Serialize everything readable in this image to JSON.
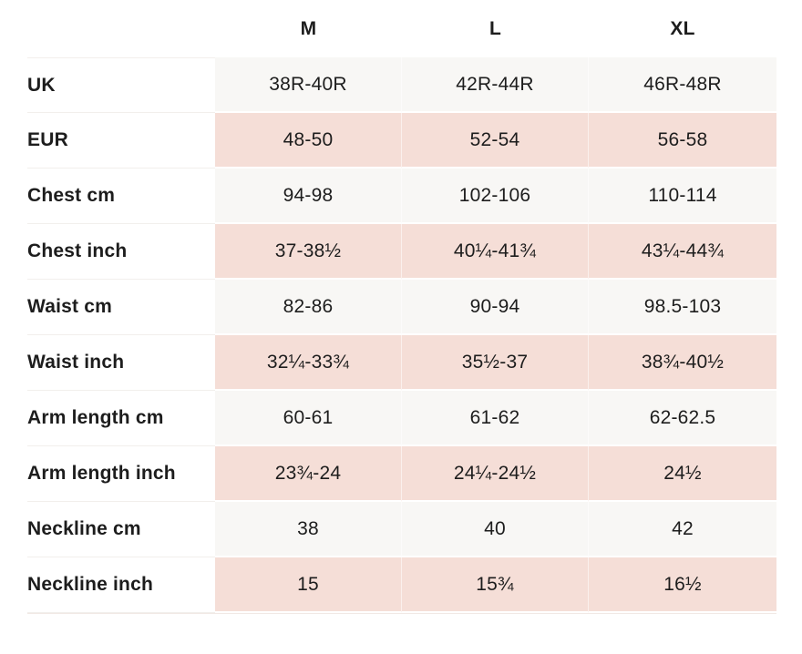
{
  "size_chart": {
    "columns": [
      "M",
      "L",
      "XL"
    ],
    "rows": [
      {
        "label": "UK",
        "values": [
          "38R-40R",
          "42R-44R",
          "46R-48R"
        ]
      },
      {
        "label": "EUR",
        "values": [
          "48-50",
          "52-54",
          "56-58"
        ]
      },
      {
        "label": "Chest cm",
        "values": [
          "94-98",
          "102-106",
          "110-114"
        ]
      },
      {
        "label": "Chest inch",
        "values": [
          "37-38½",
          "40¼-41¾",
          "43¼-44¾"
        ]
      },
      {
        "label": "Waist cm",
        "values": [
          "82-86",
          "90-94",
          "98.5-103"
        ]
      },
      {
        "label": "Waist inch",
        "values": [
          "32¼-33¾",
          "35½-37",
          "38¾-40½"
        ]
      },
      {
        "label": "Arm length cm",
        "values": [
          "60-61",
          "61-62",
          "62-62.5"
        ]
      },
      {
        "label": "Arm length inch",
        "values": [
          "23¾-24",
          "24¼-24½",
          "24½"
        ]
      },
      {
        "label": "Neckline cm",
        "values": [
          "38",
          "40",
          "42"
        ]
      },
      {
        "label": "Neckline inch",
        "values": [
          "15",
          "15¾",
          "16½"
        ]
      }
    ],
    "colors": {
      "row_light_bg": "#f8f7f5",
      "row_pink_bg": "#f5ded7",
      "text": "#1d1d1d",
      "page_bg": "#ffffff"
    }
  }
}
